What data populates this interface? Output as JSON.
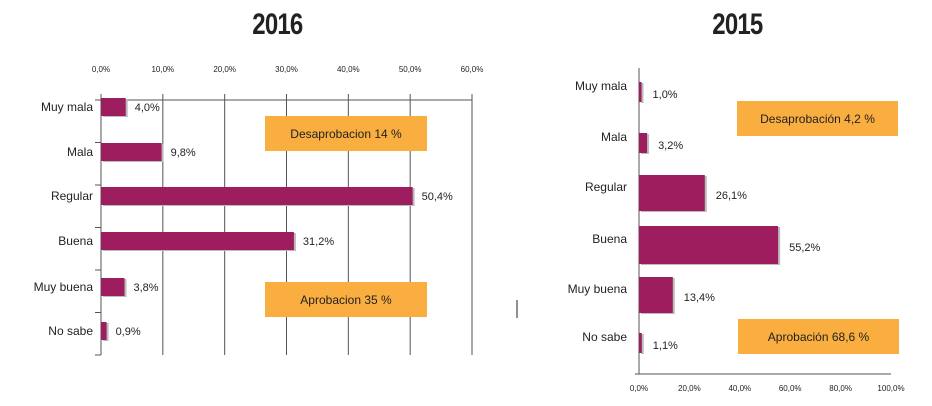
{
  "chart_data": [
    {
      "type": "bar",
      "orientation": "horizontal",
      "title": "2016",
      "categories": [
        "Muy mala",
        "Mala",
        "Regular",
        "Buena",
        "Muy buena",
        "No sabe"
      ],
      "values": [
        4.0,
        9.8,
        50.4,
        31.2,
        3.8,
        0.9
      ],
      "value_labels": [
        "4,0%",
        "9,8%",
        "50,4%",
        "31,2%",
        "3,8%",
        "0,9%"
      ],
      "xlim": [
        0,
        60
      ],
      "ticks": [
        "0,0%",
        "10,0%",
        "20,0%",
        "30,0%",
        "40,0%",
        "50,0%",
        "60,0%"
      ],
      "axis_position": "top",
      "grid": true,
      "annotations": [
        "Desaprobacion 14 %",
        "Aprobacion 35 %"
      ],
      "bar_color": "#9e1d5f",
      "annotation_color": "#f9ae3f"
    },
    {
      "type": "bar",
      "orientation": "horizontal",
      "title": "2015",
      "categories": [
        "Muy mala",
        "Mala",
        "Regular",
        "Buena",
        "Muy buena",
        "No sabe"
      ],
      "values": [
        1.0,
        3.2,
        26.1,
        55.2,
        13.4,
        1.1
      ],
      "value_labels": [
        "1,0%",
        "3,2%",
        "26,1%",
        "55,2%",
        "13,4%",
        "1,1%"
      ],
      "xlim": [
        0,
        100
      ],
      "ticks": [
        "0,0%",
        "20,0%",
        "40,0%",
        "60,0%",
        "80,0%",
        "100,0%"
      ],
      "axis_position": "bottom",
      "grid": false,
      "annotations": [
        "Desaprobación 4,2 %",
        "Aprobación 68,6 %"
      ],
      "bar_color": "#9e1d5f",
      "annotation_color": "#f9ae3f"
    }
  ]
}
